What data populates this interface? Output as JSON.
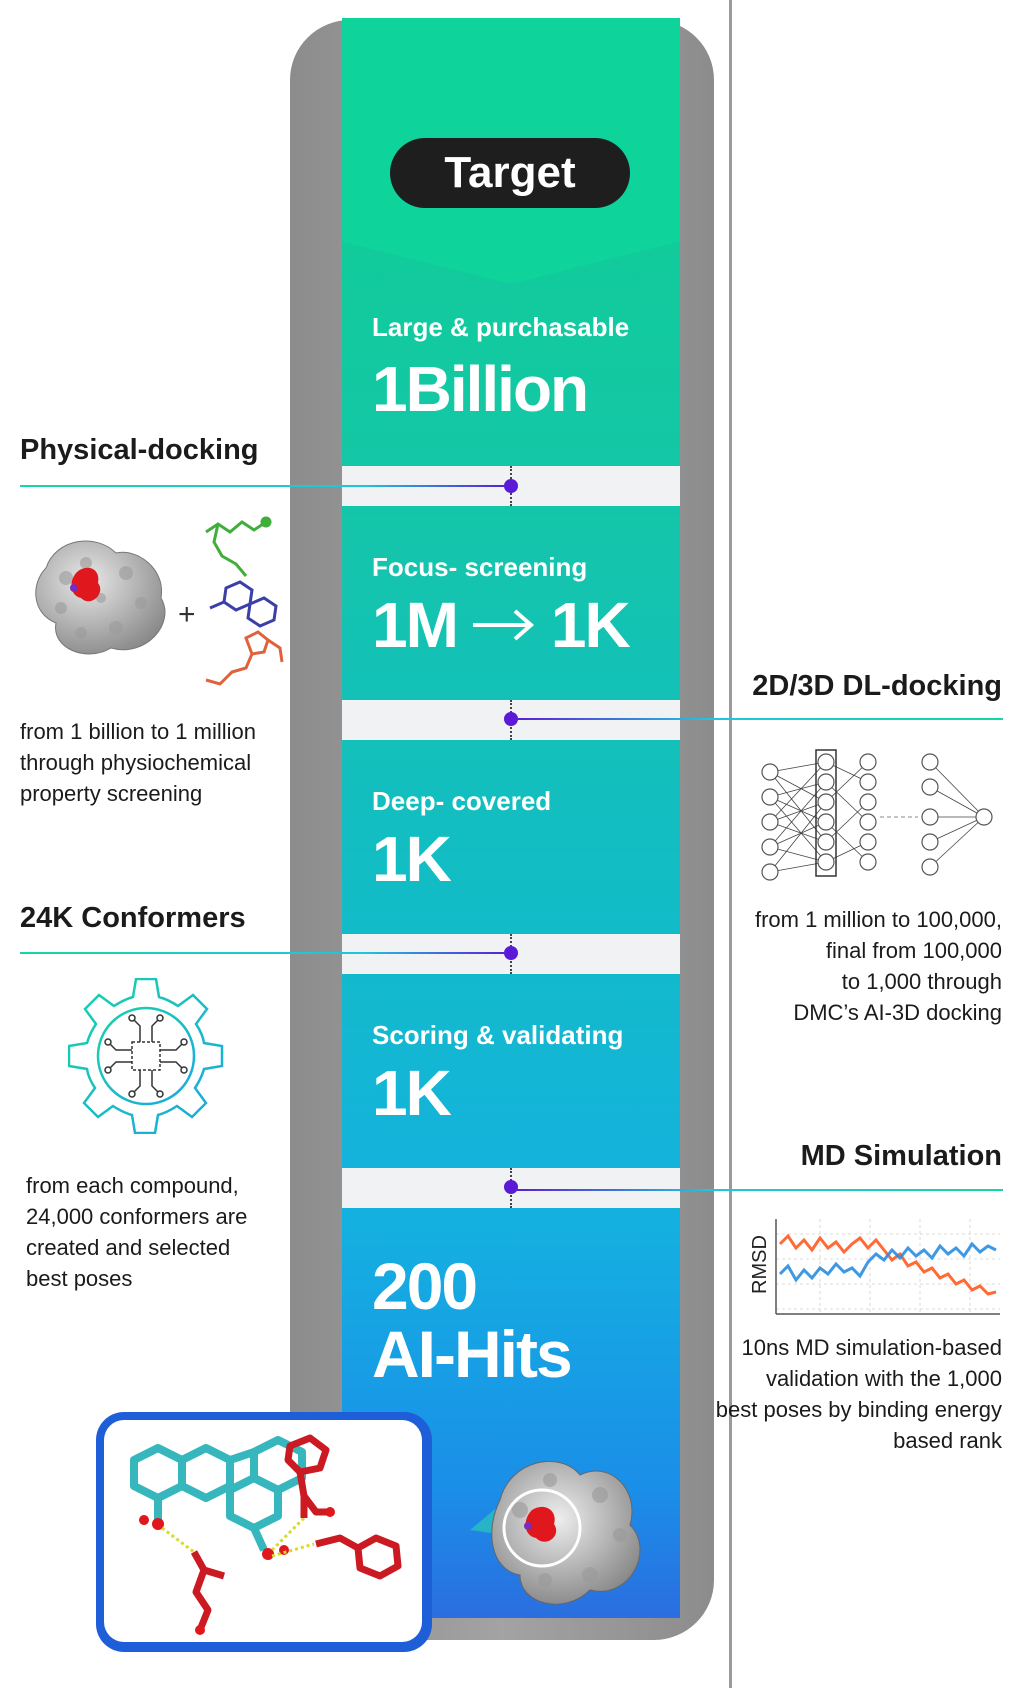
{
  "pipeline": {
    "target_label": "Target",
    "stages": [
      {
        "subtitle": "Large & purchasable",
        "value": "1Billion"
      },
      {
        "subtitle": "Focus- screening",
        "value_from": "1M",
        "value_to": "1K"
      },
      {
        "subtitle": "Deep- covered",
        "value": "1K"
      },
      {
        "subtitle": "Scoring & validating",
        "value": "1K"
      },
      {
        "value_line1": "200",
        "value_line2": "AI-Hits"
      }
    ]
  },
  "left_panels": [
    {
      "title": "Physical-docking",
      "plus_sign": "+",
      "description_lines": [
        "from 1 billion to 1 million",
        "through physiochemical",
        "property screening"
      ]
    },
    {
      "title": "24K Conformers",
      "description_lines": [
        "from each compound,",
        "24,000 conformers are",
        "created and selected",
        "best poses"
      ]
    }
  ],
  "right_panels": [
    {
      "title": "2D/3D DL-docking",
      "description_lines": [
        "from 1 million to 100,000,",
        "final from 100,000",
        "to 1,000 through",
        "DMC’s AI-3D docking"
      ]
    },
    {
      "title": "MD Simulation",
      "rmsd_label": "RMSD",
      "description_lines": [
        "10ns MD simulation-based",
        "validation with the 1,000",
        "best poses by binding energy",
        "based rank"
      ]
    }
  ],
  "colors": {
    "column_top": "#0ed08f",
    "column_bottom": "#2b6ee0",
    "connector_dot": "#5b19d8",
    "rmsd_orange": "#ff5a1f",
    "rmsd_blue": "#2a8de0"
  },
  "icons": [
    "protein-surface-icon",
    "ligand-molecules-icon",
    "neural-network-icon",
    "gear-circuit-icon",
    "rmsd-chart-icon",
    "binding-pose-icon"
  ]
}
